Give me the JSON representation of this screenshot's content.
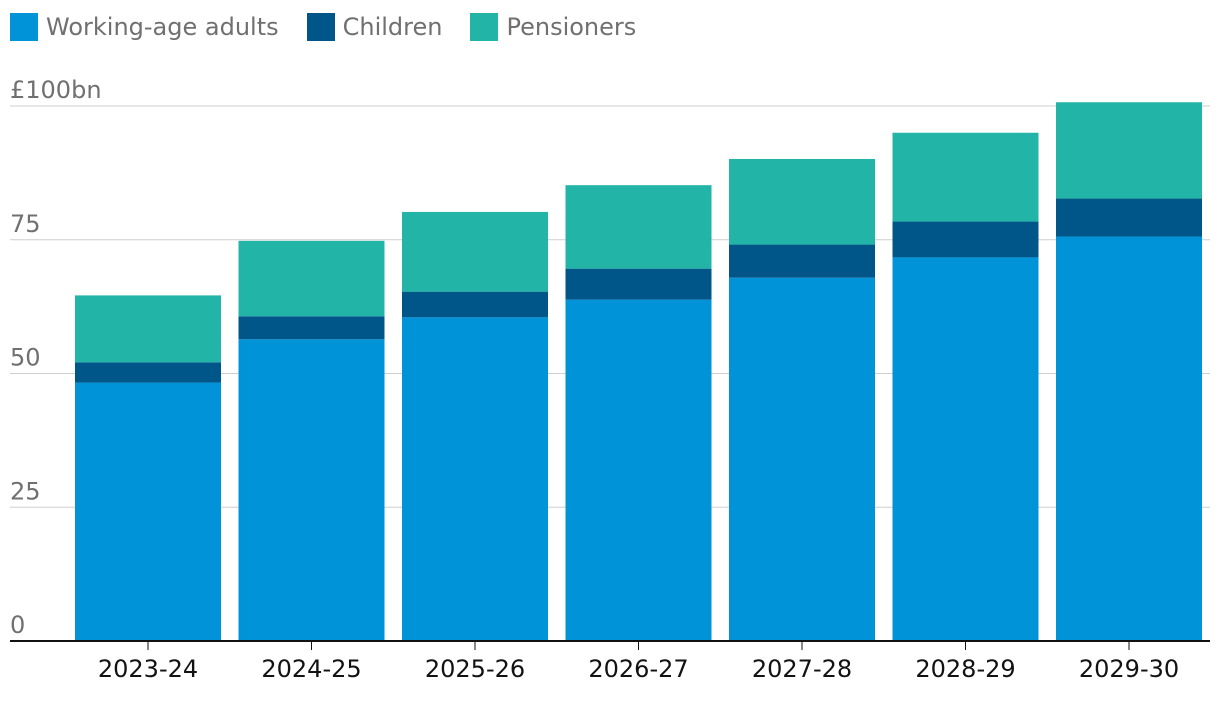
{
  "chart_data": {
    "type": "bar",
    "stacked": true,
    "categories": [
      "2023-24",
      "2024-25",
      "2025-26",
      "2026-27",
      "2027-28",
      "2028-29",
      "2029-30"
    ],
    "series": [
      {
        "name": "Working-age adults",
        "color": "#0093d8",
        "values": [
          48.3,
          56.4,
          60.5,
          63.8,
          67.9,
          71.7,
          75.6
        ]
      },
      {
        "name": "Children",
        "color": "#005689",
        "values": [
          3.8,
          4.3,
          4.8,
          5.8,
          6.2,
          6.7,
          7.1
        ]
      },
      {
        "name": "Pensioners",
        "color": "#22b4a7",
        "values": [
          12.5,
          14.1,
          14.9,
          15.6,
          16.0,
          16.6,
          18.0
        ]
      }
    ],
    "y_axis": {
      "ticks": [
        0,
        25,
        50,
        75,
        100
      ],
      "tick_labels": [
        "0",
        "25",
        "50",
        "75",
        "£100bn"
      ],
      "ylim": [
        0,
        100
      ]
    },
    "grid": true,
    "legend_position": "top-left"
  }
}
